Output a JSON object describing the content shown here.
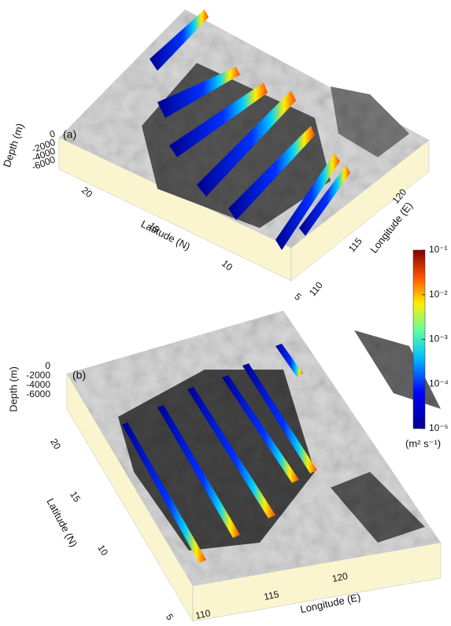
{
  "panels": [
    {
      "label": "(a)",
      "depth_label": "Depth (m)",
      "depth_ticks": [
        0,
        -2000,
        -4000,
        -6000
      ],
      "latitude_label": "Latitude (N)",
      "latitude_ticks": [
        20,
        15,
        10,
        5
      ],
      "longitude_label": "Longitude (E)",
      "longitude_ticks": [
        110,
        115,
        120
      ]
    },
    {
      "label": "(b)",
      "depth_label": "Depth (m)",
      "depth_ticks": [
        0,
        -2000,
        -4000,
        -6000
      ],
      "latitude_label": "Latitude (N)",
      "latitude_ticks": [
        20,
        15,
        10,
        5
      ],
      "longitude_label": "Longitude (E)",
      "longitude_ticks": [
        110,
        115,
        120
      ]
    }
  ],
  "colorbar": {
    "unit": "(m² s⁻¹)",
    "scale": "log",
    "lim": [
      1e-05,
      0.1
    ],
    "ticks": [
      {
        "value": 0.1,
        "label": "10⁻¹"
      },
      {
        "value": 0.01,
        "label": "10⁻²"
      },
      {
        "value": 0.001,
        "label": "10⁻³"
      },
      {
        "value": 0.0001,
        "label": "10⁻⁴"
      },
      {
        "value": 1e-05,
        "label": "10⁻⁵"
      }
    ]
  }
}
